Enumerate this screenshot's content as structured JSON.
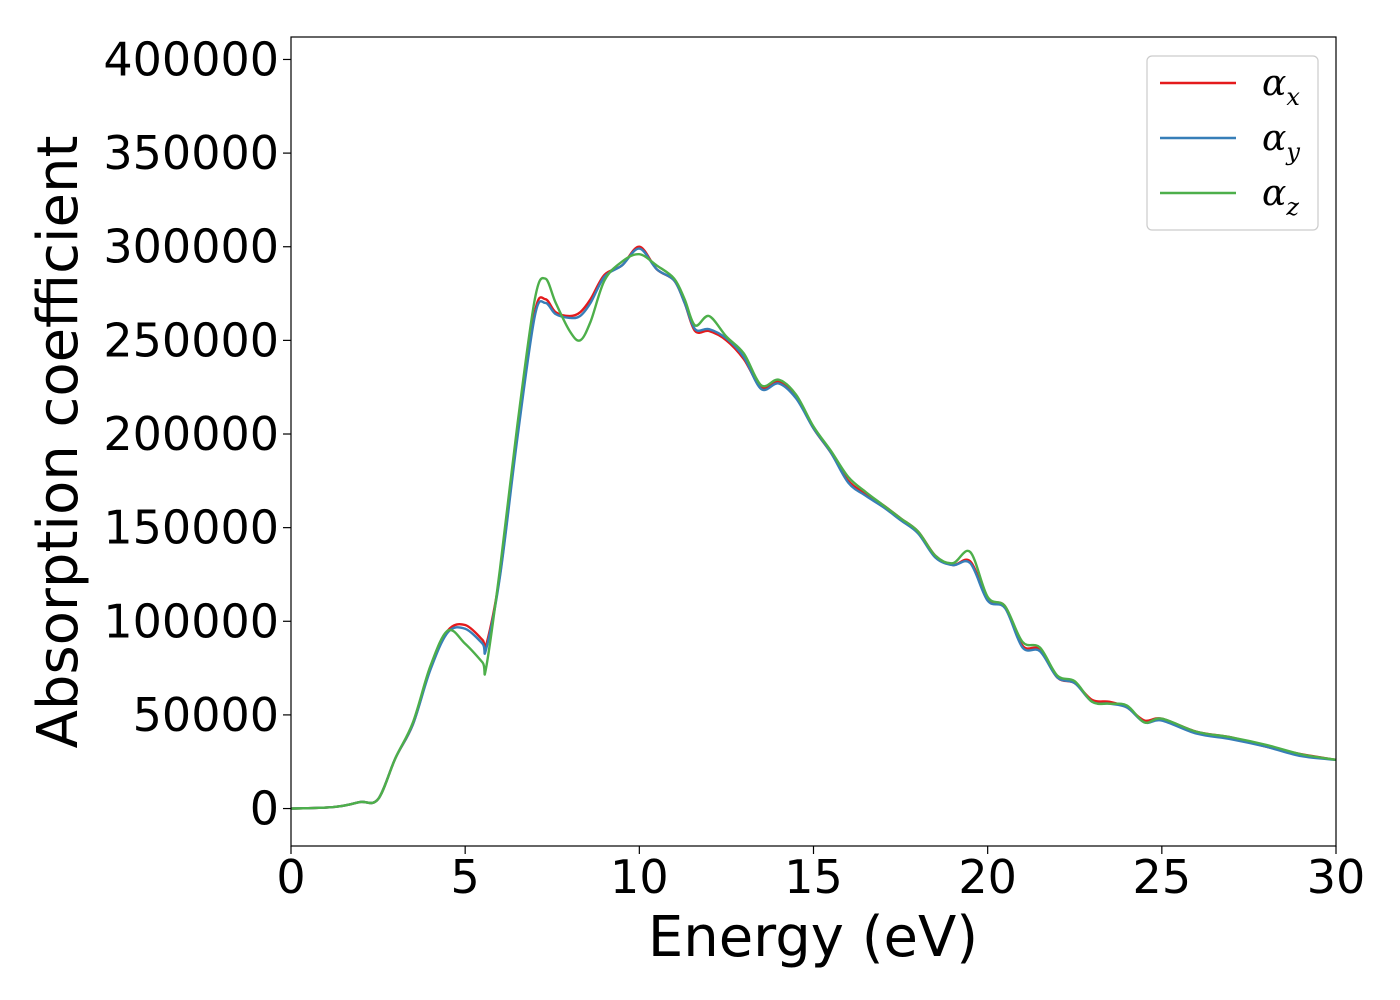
{
  "chart_data": {
    "type": "line",
    "xlabel": "Energy (eV)",
    "ylabel": "Absorption coefficient",
    "xlim": [
      0,
      30
    ],
    "ylim": [
      -20000,
      412000
    ],
    "xticks": [
      0,
      5,
      10,
      15,
      20,
      25,
      30
    ],
    "xtick_labels": [
      "0",
      "5",
      "10",
      "15",
      "20",
      "25",
      "30"
    ],
    "yticks": [
      0,
      50000,
      100000,
      150000,
      200000,
      250000,
      300000,
      350000,
      400000
    ],
    "ytick_labels": [
      "0",
      "50000",
      "100000",
      "150000",
      "200000",
      "250000",
      "300000",
      "350000",
      "400000"
    ],
    "grid": false,
    "legend_position": "top-right",
    "series": [
      {
        "name": "α_x",
        "legend_base": "α",
        "legend_sub": "x",
        "color": "#e41a1c",
        "x": [
          0,
          1,
          1.5,
          2,
          2.5,
          3,
          3.5,
          4,
          4.5,
          5,
          5.5,
          5.6,
          6,
          6.5,
          7,
          7.3,
          7.6,
          8,
          8.3,
          8.6,
          9,
          9.5,
          10,
          10.5,
          11,
          11.3,
          11.6,
          12,
          12.5,
          13,
          13.5,
          14,
          14.5,
          15,
          15.5,
          16,
          16.5,
          17,
          17.5,
          18,
          18.5,
          19,
          19.5,
          20,
          20.5,
          21,
          21.5,
          22,
          22.5,
          23,
          23.5,
          24,
          24.5,
          25,
          26,
          27,
          28,
          29,
          30
        ],
        "y": [
          0,
          500,
          1500,
          3500,
          5000,
          27000,
          45000,
          75000,
          95000,
          98000,
          90000,
          87000,
          125000,
          200000,
          265000,
          272000,
          265000,
          263000,
          265000,
          272000,
          285000,
          290000,
          300000,
          288000,
          282000,
          270000,
          255000,
          255000,
          250000,
          240000,
          225000,
          228000,
          220000,
          203000,
          190000,
          175000,
          168000,
          162000,
          155000,
          148000,
          135000,
          130000,
          132000,
          112000,
          108000,
          87000,
          85000,
          70000,
          67000,
          58000,
          57000,
          54000,
          47000,
          48000,
          41000,
          38000,
          33000,
          29000,
          26000
        ]
      },
      {
        "name": "α_y",
        "legend_base": "α",
        "legend_sub": "y",
        "color": "#377eb8",
        "x": [
          0,
          1,
          1.5,
          2,
          2.5,
          3,
          3.5,
          4,
          4.5,
          5,
          5.5,
          5.6,
          6,
          6.5,
          7,
          7.3,
          7.6,
          8,
          8.3,
          8.6,
          9,
          9.5,
          10,
          10.5,
          11,
          11.3,
          11.6,
          12,
          12.5,
          13,
          13.5,
          14,
          14.5,
          15,
          15.5,
          16,
          16.5,
          17,
          17.5,
          18,
          18.5,
          19,
          19.5,
          20,
          20.5,
          21,
          21.5,
          22,
          22.5,
          23,
          23.5,
          24,
          24.5,
          25,
          26,
          27,
          28,
          29,
          30
        ],
        "y": [
          0,
          500,
          1500,
          3500,
          5000,
          27000,
          45000,
          74000,
          94000,
          96000,
          88000,
          85000,
          124000,
          198000,
          263000,
          270000,
          264000,
          262000,
          263000,
          270000,
          284000,
          290000,
          299000,
          288000,
          282000,
          270000,
          256000,
          256000,
          251000,
          241000,
          224000,
          227000,
          219000,
          203000,
          190000,
          174000,
          167000,
          161000,
          154000,
          147000,
          134000,
          130000,
          131000,
          111000,
          107000,
          86000,
          84000,
          70000,
          67000,
          57000,
          56000,
          54000,
          46000,
          47000,
          40000,
          37000,
          33000,
          28000,
          26000
        ]
      },
      {
        "name": "α_z",
        "legend_base": "α",
        "legend_sub": "z",
        "color": "#4daf4a",
        "x": [
          0,
          1,
          1.5,
          2,
          2.5,
          3,
          3.5,
          4,
          4.5,
          5,
          5.5,
          5.6,
          6,
          6.5,
          7,
          7.3,
          7.6,
          8,
          8.3,
          8.6,
          9,
          9.5,
          10,
          10.5,
          11,
          11.3,
          11.6,
          12,
          12.5,
          13,
          13.5,
          14,
          14.5,
          15,
          15.5,
          16,
          16.5,
          17,
          17.5,
          18,
          18.5,
          19,
          19.5,
          20,
          20.5,
          21,
          21.5,
          22,
          22.5,
          23,
          23.5,
          24,
          24.5,
          25,
          26,
          27,
          28,
          29,
          30
        ],
        "y": [
          0,
          500,
          1500,
          3500,
          5000,
          27000,
          46000,
          76000,
          95000,
          88000,
          78000,
          75000,
          128000,
          205000,
          272000,
          283000,
          270000,
          255000,
          250000,
          260000,
          282000,
          292000,
          296000,
          290000,
          283000,
          272000,
          258000,
          263000,
          252000,
          243000,
          226000,
          229000,
          221000,
          204000,
          191000,
          177000,
          169000,
          162000,
          155000,
          148000,
          135000,
          131000,
          137000,
          113000,
          108000,
          89000,
          86000,
          71000,
          68000,
          57000,
          56000,
          55000,
          46000,
          48000,
          41000,
          38000,
          34000,
          29000,
          26000
        ]
      }
    ]
  }
}
